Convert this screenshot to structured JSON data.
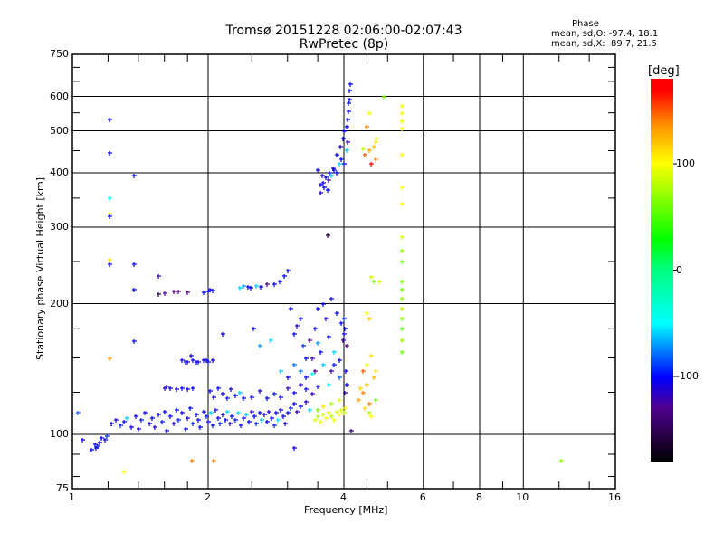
{
  "chart_data": {
    "type": "scatter",
    "title": "Tromsø 20151228 02:06:00-02:07:43",
    "subtitle": "RwPretec (8p)",
    "xlabel": "Frequency [MHz]",
    "ylabel": "Stationary phase Virtual Height [km]",
    "xscale": "log",
    "yscale": "log",
    "xlim": [
      1,
      16
    ],
    "ylim": [
      75,
      750
    ],
    "xticks": [
      "1",
      "2",
      "4",
      "6",
      "8",
      "10",
      "16"
    ],
    "xtick_values": [
      1,
      2,
      4,
      6,
      8,
      10,
      16
    ],
    "yticks": [
      "75",
      "100",
      "200",
      "300",
      "400",
      "500",
      "600",
      "750"
    ],
    "ytick_values": [
      75,
      100,
      200,
      300,
      400,
      500,
      600,
      750
    ],
    "grid": true,
    "stats": {
      "heading": "Phase",
      "line_o": "mean, sd,O: -97.4, 18.1",
      "line_x": "mean, sd,X:  89.7, 21.5"
    },
    "colorbar": {
      "label": "[deg]",
      "range": [
        -180,
        180
      ],
      "ticks": [
        "100",
        "0",
        "-100"
      ],
      "tick_values": [
        100,
        0,
        -100
      ]
    },
    "point_fields": [
      "frequency_mhz",
      "height_km",
      "phase_deg"
    ],
    "points": [
      [
        1.12,
        95,
        -105
      ],
      [
        1.13,
        93,
        -100
      ],
      [
        1.14,
        94,
        -95
      ],
      [
        1.15,
        96,
        -110
      ],
      [
        1.16,
        98,
        -100
      ],
      [
        1.18,
        97,
        -105
      ],
      [
        1.19,
        99,
        -90
      ],
      [
        1.05,
        97,
        -100
      ],
      [
        1.03,
        112,
        -80
      ],
      [
        1.1,
        92,
        -100
      ],
      [
        1.22,
        106,
        -100
      ],
      [
        1.25,
        108,
        -110
      ],
      [
        1.28,
        105,
        -95
      ],
      [
        1.3,
        107,
        -100
      ],
      [
        1.32,
        109,
        -60
      ],
      [
        1.35,
        104,
        -105
      ],
      [
        1.38,
        110,
        -100
      ],
      [
        1.4,
        103,
        -110
      ],
      [
        1.42,
        108,
        -95
      ],
      [
        1.45,
        112,
        -100
      ],
      [
        1.48,
        106,
        -105
      ],
      [
        1.5,
        109,
        -100
      ],
      [
        1.52,
        104,
        -110
      ],
      [
        1.55,
        111,
        -100
      ],
      [
        1.58,
        107,
        -95
      ],
      [
        1.6,
        113,
        -100
      ],
      [
        1.62,
        102,
        -105
      ],
      [
        1.65,
        110,
        -100
      ],
      [
        1.68,
        106,
        -110
      ],
      [
        1.7,
        114,
        -100
      ],
      [
        1.72,
        108,
        -95
      ],
      [
        1.75,
        112,
        -105
      ],
      [
        1.78,
        103,
        -100
      ],
      [
        1.8,
        109,
        -110
      ],
      [
        1.82,
        115,
        -100
      ],
      [
        1.85,
        106,
        -95
      ],
      [
        1.88,
        111,
        -105
      ],
      [
        1.9,
        108,
        -100
      ],
      [
        1.92,
        104,
        -100
      ],
      [
        1.95,
        113,
        -110
      ],
      [
        1.98,
        110,
        -95
      ],
      [
        2.0,
        107,
        -100
      ],
      [
        2.03,
        112,
        -60
      ],
      [
        2.05,
        105,
        -100
      ],
      [
        2.08,
        114,
        -110
      ],
      [
        2.1,
        109,
        -100
      ],
      [
        2.12,
        106,
        -95
      ],
      [
        2.15,
        111,
        -105
      ],
      [
        2.18,
        108,
        -100
      ],
      [
        2.2,
        113,
        -60
      ],
      [
        2.23,
        106,
        -110
      ],
      [
        2.26,
        110,
        -100
      ],
      [
        2.3,
        108,
        -95
      ],
      [
        2.33,
        112,
        -55
      ],
      [
        2.36,
        105,
        -100
      ],
      [
        2.4,
        109,
        -105
      ],
      [
        2.43,
        111,
        -60
      ],
      [
        2.46,
        107,
        -100
      ],
      [
        2.5,
        113,
        -110
      ],
      [
        2.53,
        110,
        -100
      ],
      [
        2.56,
        106,
        -95
      ],
      [
        2.6,
        112,
        -100
      ],
      [
        2.63,
        108,
        -60
      ],
      [
        2.66,
        111,
        -105
      ],
      [
        2.7,
        107,
        -100
      ],
      [
        2.73,
        113,
        -110
      ],
      [
        2.76,
        109,
        -100
      ],
      [
        2.8,
        105,
        -95
      ],
      [
        2.83,
        112,
        -100
      ],
      [
        2.86,
        108,
        -55
      ],
      [
        2.9,
        114,
        -105
      ],
      [
        2.93,
        110,
        -100
      ],
      [
        2.96,
        106,
        -110
      ],
      [
        3.0,
        112,
        -100
      ],
      [
        3.05,
        115,
        -95
      ],
      [
        3.1,
        118,
        -100
      ],
      [
        3.15,
        113,
        -120
      ],
      [
        3.2,
        116,
        -100
      ],
      [
        3.3,
        119,
        -110
      ],
      [
        3.35,
        114,
        -60
      ],
      [
        2.02,
        126,
        -100
      ],
      [
        2.06,
        122,
        -110
      ],
      [
        2.1,
        128,
        -100
      ],
      [
        2.15,
        124,
        -100
      ],
      [
        2.2,
        121,
        -95
      ],
      [
        2.25,
        127,
        -105
      ],
      [
        2.3,
        123,
        -100
      ],
      [
        2.35,
        125,
        -60
      ],
      [
        2.4,
        121,
        -100
      ],
      [
        2.5,
        122,
        -100
      ],
      [
        2.6,
        126,
        -110
      ],
      [
        2.7,
        121,
        -100
      ],
      [
        2.8,
        124,
        -95
      ],
      [
        2.9,
        122,
        -100
      ],
      [
        3.0,
        128,
        -120
      ],
      [
        3.1,
        125,
        -100
      ],
      [
        3.2,
        130,
        -110
      ],
      [
        3.3,
        127,
        -100
      ],
      [
        3.4,
        124,
        -120
      ],
      [
        3.5,
        129,
        -100
      ],
      [
        1.6,
        128,
        -110
      ],
      [
        1.65,
        128,
        -105
      ],
      [
        1.7,
        127,
        -110
      ],
      [
        1.75,
        128,
        -100
      ],
      [
        1.8,
        127,
        -105
      ],
      [
        1.85,
        128,
        -100
      ],
      [
        1.62,
        129,
        -110
      ],
      [
        1.75,
        148,
        -105
      ],
      [
        1.8,
        147,
        -110
      ],
      [
        1.85,
        148,
        -100
      ],
      [
        1.9,
        147,
        -105
      ],
      [
        1.95,
        148,
        -110
      ],
      [
        2.0,
        147,
        -100
      ],
      [
        2.05,
        148,
        -105
      ],
      [
        1.78,
        147,
        -100
      ],
      [
        1.88,
        147,
        -105
      ],
      [
        1.98,
        148,
        -100
      ],
      [
        1.83,
        152,
        -110
      ],
      [
        2.0,
        213,
        -100
      ],
      [
        2.02,
        215,
        -105
      ],
      [
        2.05,
        214,
        -100
      ],
      [
        1.95,
        212,
        -100
      ],
      [
        1.72,
        213,
        -130
      ],
      [
        1.6,
        211,
        -130
      ],
      [
        1.55,
        210,
        -150
      ],
      [
        2.35,
        218,
        -60
      ],
      [
        2.4,
        220,
        -70
      ],
      [
        2.45,
        219,
        -100
      ],
      [
        2.55,
        220,
        -60
      ],
      [
        2.62,
        219,
        -100
      ],
      [
        2.7,
        222,
        -130
      ],
      [
        2.8,
        222,
        -100
      ],
      [
        2.88,
        225,
        -100
      ],
      [
        2.95,
        232,
        -100
      ],
      [
        3.0,
        238,
        -100
      ],
      [
        2.48,
        218,
        -100
      ],
      [
        3.05,
        195,
        -100
      ],
      [
        3.1,
        170,
        -100
      ],
      [
        3.15,
        178,
        -110
      ],
      [
        3.2,
        185,
        -100
      ],
      [
        3.25,
        160,
        -90
      ],
      [
        3.3,
        150,
        -100
      ],
      [
        3.35,
        165,
        -130
      ],
      [
        3.4,
        150,
        -120
      ],
      [
        3.45,
        175,
        -100
      ],
      [
        3.5,
        162,
        -70
      ],
      [
        3.55,
        155,
        -100
      ],
      [
        3.6,
        145,
        -60
      ],
      [
        3.65,
        185,
        -110
      ],
      [
        3.7,
        168,
        -100
      ],
      [
        3.75,
        140,
        -120
      ],
      [
        3.8,
        155,
        -60
      ],
      [
        3.85,
        190,
        -100
      ],
      [
        3.9,
        148,
        -100
      ],
      [
        3.95,
        180,
        -100
      ],
      [
        3.98,
        165,
        -120
      ],
      [
        3.3,
        135,
        -100
      ],
      [
        3.4,
        138,
        -50
      ],
      [
        3.2,
        140,
        -80
      ],
      [
        3.5,
        195,
        -100
      ],
      [
        3.6,
        200,
        -100
      ],
      [
        3.75,
        205,
        -100
      ],
      [
        3.45,
        140,
        -130
      ],
      [
        3.7,
        130,
        -50
      ],
      [
        3.8,
        145,
        -100
      ],
      [
        3.9,
        135,
        -80
      ],
      [
        3.0,
        135,
        -100
      ],
      [
        3.1,
        145,
        -80
      ],
      [
        2.9,
        140,
        -60
      ],
      [
        3.45,
        108,
        90
      ],
      [
        3.5,
        110,
        80
      ],
      [
        3.55,
        107,
        95
      ],
      [
        3.6,
        111,
        85
      ],
      [
        3.65,
        109,
        100
      ],
      [
        3.7,
        112,
        90
      ],
      [
        3.75,
        110,
        80
      ],
      [
        3.8,
        108,
        95
      ],
      [
        3.85,
        113,
        85
      ],
      [
        3.9,
        111,
        100
      ],
      [
        3.95,
        114,
        90
      ],
      [
        4.0,
        112,
        80
      ],
      [
        3.6,
        116,
        110
      ],
      [
        3.75,
        118,
        70
      ],
      [
        3.9,
        120,
        95
      ],
      [
        3.5,
        114,
        60
      ],
      [
        4.02,
        115,
        100
      ],
      [
        4.3,
        120,
        130
      ],
      [
        4.4,
        125,
        140
      ],
      [
        4.45,
        115,
        110
      ],
      [
        4.5,
        130,
        120
      ],
      [
        4.55,
        118,
        140
      ],
      [
        4.6,
        110,
        100
      ],
      [
        4.65,
        135,
        125
      ],
      [
        4.7,
        140,
        110
      ],
      [
        4.4,
        140,
        150
      ],
      [
        4.5,
        145,
        95
      ],
      [
        4.55,
        112,
        80
      ],
      [
        4.7,
        120,
        60
      ],
      [
        4.35,
        128,
        115
      ],
      [
        4.6,
        152,
        110
      ],
      [
        4.02,
        125,
        -120
      ],
      [
        4.05,
        130,
        -100
      ],
      [
        4.03,
        140,
        -100
      ],
      [
        4.05,
        160,
        -130
      ],
      [
        4.0,
        170,
        -100
      ],
      [
        4.02,
        175,
        -100
      ],
      [
        4.0,
        185,
        -90
      ],
      [
        5.38,
        155,
        60
      ],
      [
        5.38,
        165,
        70
      ],
      [
        5.38,
        175,
        50
      ],
      [
        5.38,
        185,
        60
      ],
      [
        5.38,
        195,
        80
      ],
      [
        5.38,
        205,
        70
      ],
      [
        5.38,
        215,
        60
      ],
      [
        5.38,
        225,
        65
      ],
      [
        5.38,
        250,
        60
      ],
      [
        5.38,
        265,
        70
      ],
      [
        5.38,
        285,
        90
      ],
      [
        5.38,
        340,
        100
      ],
      [
        5.38,
        370,
        100
      ],
      [
        5.38,
        440,
        100
      ],
      [
        5.38,
        525,
        100
      ],
      [
        5.38,
        550,
        100
      ],
      [
        5.38,
        570,
        100
      ],
      [
        5.38,
        505,
        100
      ],
      [
        4.6,
        230,
        90
      ],
      [
        4.65,
        225,
        60
      ],
      [
        4.8,
        225,
        90
      ],
      [
        4.5,
        190,
        100
      ],
      [
        4.55,
        185,
        120
      ],
      [
        4.45,
        440,
        150
      ],
      [
        4.55,
        450,
        130
      ],
      [
        4.65,
        460,
        120
      ],
      [
        4.7,
        470,
        110
      ],
      [
        4.72,
        480,
        90
      ],
      [
        4.6,
        420,
        170
      ],
      [
        4.4,
        455,
        80
      ],
      [
        4.7,
        430,
        140
      ],
      [
        4.5,
        510,
        140
      ],
      [
        4.9,
        600,
        60
      ],
      [
        4.55,
        550,
        100
      ],
      [
        3.55,
        375,
        -100
      ],
      [
        3.6,
        380,
        -110
      ],
      [
        3.62,
        370,
        -100
      ],
      [
        3.65,
        390,
        -100
      ],
      [
        3.7,
        385,
        -120
      ],
      [
        3.72,
        400,
        -100
      ],
      [
        3.75,
        395,
        -60
      ],
      [
        3.78,
        410,
        -110
      ],
      [
        3.8,
        405,
        -100
      ],
      [
        3.85,
        400,
        -100
      ],
      [
        3.9,
        420,
        -60
      ],
      [
        3.95,
        430,
        -100
      ],
      [
        3.5,
        405,
        -100
      ],
      [
        3.55,
        360,
        -110
      ],
      [
        3.68,
        365,
        -100
      ],
      [
        3.85,
        440,
        -100
      ],
      [
        3.92,
        460,
        -110
      ],
      [
        3.98,
        480,
        -100
      ],
      [
        4.0,
        500,
        -100
      ],
      [
        4.05,
        510,
        -100
      ],
      [
        4.08,
        530,
        -100
      ],
      [
        4.1,
        555,
        -100
      ],
      [
        4.12,
        590,
        -100
      ],
      [
        4.12,
        620,
        -100
      ],
      [
        4.14,
        640,
        -100
      ],
      [
        4.08,
        470,
        -120
      ],
      [
        4.05,
        450,
        -60
      ],
      [
        4.1,
        580,
        -100
      ],
      [
        4.0,
        420,
        -100
      ],
      [
        3.58,
        395,
        -110
      ],
      [
        1.21,
        532,
        -100
      ],
      [
        1.21,
        444,
        -100
      ],
      [
        1.21,
        350,
        -50
      ],
      [
        1.21,
        322,
        90
      ],
      [
        1.21,
        318,
        -100
      ],
      [
        1.21,
        253,
        110
      ],
      [
        1.21,
        246,
        -100
      ],
      [
        1.37,
        247,
        -100
      ],
      [
        1.37,
        215,
        -100
      ],
      [
        1.37,
        164,
        -100
      ],
      [
        1.21,
        150,
        130
      ],
      [
        1.37,
        395,
        -100
      ],
      [
        1.55,
        232,
        -120
      ],
      [
        1.68,
        213,
        -130
      ],
      [
        1.8,
        212,
        -130
      ],
      [
        12.1,
        87,
        70
      ],
      [
        1.3,
        82,
        100
      ],
      [
        2.06,
        87,
        140
      ],
      [
        1.84,
        87,
        140
      ],
      [
        3.68,
        288,
        -160
      ],
      [
        3.1,
        93,
        -100
      ],
      [
        4.15,
        102,
        -150
      ],
      [
        2.52,
        175,
        -100
      ],
      [
        2.6,
        160,
        -70
      ],
      [
        2.75,
        165,
        -60
      ],
      [
        2.15,
        170,
        -100
      ]
    ]
  }
}
